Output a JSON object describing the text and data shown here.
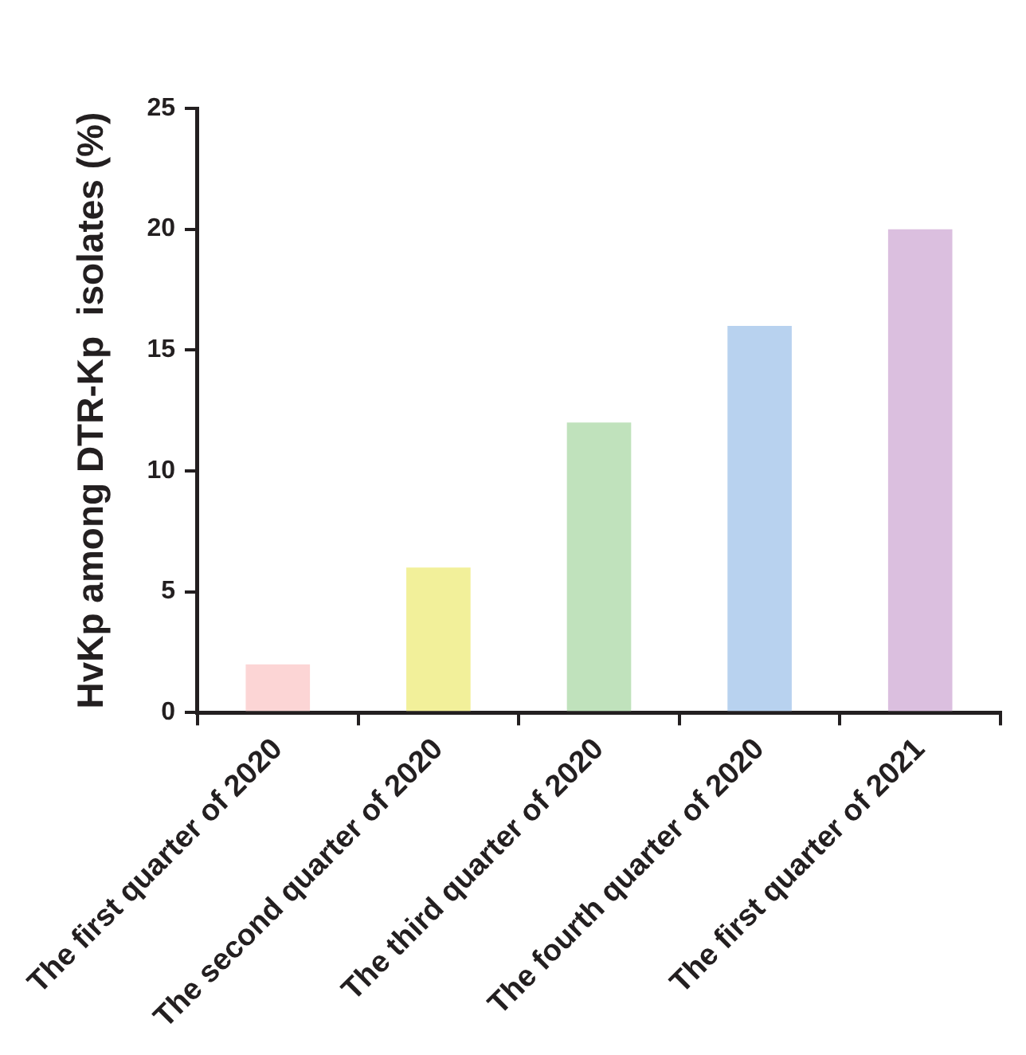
{
  "chart_data": {
    "type": "bar",
    "ylabel": "HvKp among DTR-Kp  isolates (%)",
    "categories": [
      "The first quarter of 2020",
      "The second quarter of 2020",
      "The third quarter of 2020",
      "The fourth quarter of 2020",
      "The first quarter of 2021"
    ],
    "values": [
      2,
      6,
      12,
      16,
      20
    ],
    "colors": [
      "#fcd5d5",
      "#f2f09a",
      "#c0e2bc",
      "#b8d2ef",
      "#dbbfdf"
    ],
    "ylim": [
      0,
      25
    ],
    "yticks": [
      0,
      5,
      10,
      15,
      20,
      25
    ],
    "grid": false,
    "legend": false
  }
}
